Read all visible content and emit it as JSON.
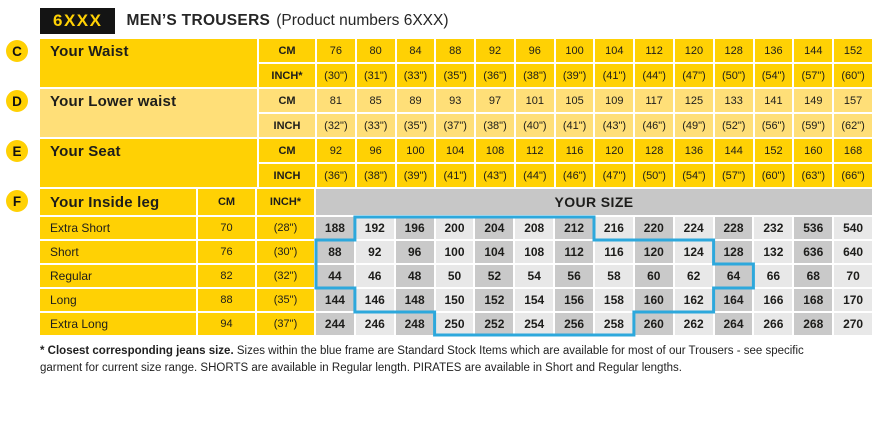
{
  "header": {
    "code": "6XXX",
    "title": "MEN’S TROUSERS",
    "subtitle": "(Product numbers 6XXX)"
  },
  "colors": {
    "bright_yellow": "#ffd104",
    "light_yellow": "#ffdf78",
    "gray_dark_cell": "#c9c9c9",
    "gray_light_cell": "#e8e8e8",
    "gray_header_band": "#c7c7c7",
    "blue_frame": "#2da8dc",
    "text": "#1d1d1b"
  },
  "measurement_sections": [
    {
      "badge": "C",
      "label": "Your Waist",
      "tone": "bright",
      "rows": [
        {
          "unit": "CM",
          "values": [
            "76",
            "80",
            "84",
            "88",
            "92",
            "96",
            "100",
            "104",
            "112",
            "120",
            "128",
            "136",
            "144",
            "152"
          ]
        },
        {
          "unit": "INCH*",
          "values": [
            "(30\")",
            "(31\")",
            "(33\")",
            "(35\")",
            "(36\")",
            "(38\")",
            "(39\")",
            "(41\")",
            "(44\")",
            "(47\")",
            "(50\")",
            "(54\")",
            "(57\")",
            "(60\")"
          ]
        }
      ]
    },
    {
      "badge": "D",
      "label": "Your Lower waist",
      "tone": "light",
      "rows": [
        {
          "unit": "CM",
          "values": [
            "81",
            "85",
            "89",
            "93",
            "97",
            "101",
            "105",
            "109",
            "117",
            "125",
            "133",
            "141",
            "149",
            "157"
          ]
        },
        {
          "unit": "INCH",
          "values": [
            "(32\")",
            "(33\")",
            "(35\")",
            "(37\")",
            "(38\")",
            "(40\")",
            "(41\")",
            "(43\")",
            "(46\")",
            "(49\")",
            "(52\")",
            "(56\")",
            "(59\")",
            "(62\")"
          ]
        }
      ]
    },
    {
      "badge": "E",
      "label": "Your Seat",
      "tone": "bright",
      "rows": [
        {
          "unit": "CM",
          "values": [
            "92",
            "96",
            "100",
            "104",
            "108",
            "112",
            "116",
            "120",
            "128",
            "136",
            "144",
            "152",
            "160",
            "168"
          ]
        },
        {
          "unit": "INCH",
          "values": [
            "(36\")",
            "(38\")",
            "(39\")",
            "(41\")",
            "(43\")",
            "(44\")",
            "(46\")",
            "(47\")",
            "(50\")",
            "(54\")",
            "(57\")",
            "(60\")",
            "(63\")",
            "(66\")"
          ]
        }
      ]
    }
  ],
  "inside_leg": {
    "badge": "F",
    "label": "Your Inside leg",
    "cm_header": "CM",
    "inch_header": "INCH*",
    "size_header": "YOUR SIZE",
    "rows": [
      {
        "label": "Extra Short",
        "cm": "70",
        "inch": "(28\")",
        "sizes": [
          "188",
          "192",
          "196",
          "200",
          "204",
          "208",
          "212",
          "216",
          "220",
          "224",
          "228",
          "232",
          "536",
          "540"
        ]
      },
      {
        "label": "Short",
        "cm": "76",
        "inch": "(30\")",
        "sizes": [
          "88",
          "92",
          "96",
          "100",
          "104",
          "108",
          "112",
          "116",
          "120",
          "124",
          "128",
          "132",
          "636",
          "640"
        ]
      },
      {
        "label": "Regular",
        "cm": "82",
        "inch": "(32\")",
        "sizes": [
          "44",
          "46",
          "48",
          "50",
          "52",
          "54",
          "56",
          "58",
          "60",
          "62",
          "64",
          "66",
          "68",
          "70"
        ]
      },
      {
        "label": "Long",
        "cm": "88",
        "inch": "(35\")",
        "sizes": [
          "144",
          "146",
          "148",
          "150",
          "152",
          "154",
          "156",
          "158",
          "160",
          "162",
          "164",
          "166",
          "168",
          "170"
        ]
      },
      {
        "label": "Extra Long",
        "cm": "94",
        "inch": "(37\")",
        "sizes": [
          "244",
          "246",
          "248",
          "250",
          "252",
          "254",
          "256",
          "258",
          "260",
          "262",
          "264",
          "266",
          "268",
          "270"
        ]
      }
    ],
    "standard_stock_frame": {
      "note": "stepped blue outline marking standard stock sizes; coordinates in [column,row] grid-boundary units",
      "points": [
        [
          1,
          0
        ],
        [
          7,
          0
        ],
        [
          7,
          1
        ],
        [
          10,
          1
        ],
        [
          10,
          2
        ],
        [
          11,
          2
        ],
        [
          11,
          3
        ],
        [
          10,
          3
        ],
        [
          10,
          4
        ],
        [
          8,
          4
        ],
        [
          8,
          5
        ],
        [
          3,
          5
        ],
        [
          3,
          4
        ],
        [
          1,
          4
        ],
        [
          1,
          3
        ],
        [
          0,
          3
        ],
        [
          0,
          1
        ],
        [
          1,
          1
        ]
      ]
    }
  },
  "footnote": {
    "bold": "* Closest corresponding jeans size.",
    "text": "Sizes within the blue frame are Standard Stock Items which are available for most of our Trousers - see specific garment for current size range. SHORTS are available in Regular length. PIRATES are available in Short and Regular lengths."
  }
}
